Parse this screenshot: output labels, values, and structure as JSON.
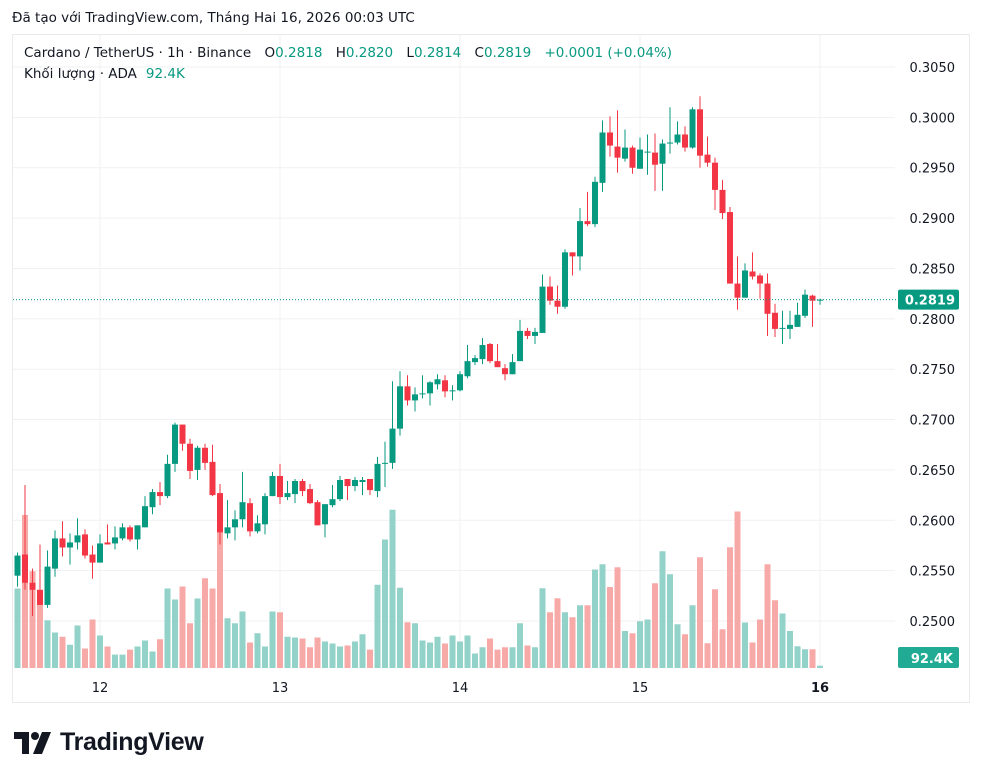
{
  "created_line": "Đã tạo với TradingView.com, Tháng Hai 16, 2026 00:03 UTC",
  "legend": {
    "symbol": "Cardano / TetherUS · 1h · Binance",
    "o_label": "O",
    "o_value": "0.2818",
    "h_label": "H",
    "h_value": "0.2820",
    "l_label": "L",
    "l_value": "0.2814",
    "c_label": "C",
    "c_value": "0.2819",
    "change": "+0.0001 (+0.04%)",
    "volume_label": "Khối lượng · ADA",
    "volume_value": "92.4K"
  },
  "brand": {
    "logo_text": "TradingView"
  },
  "colors": {
    "up": "#089981",
    "down": "#f23645",
    "vol_up": "#92d2c9",
    "vol_down": "#f7a9a7",
    "grid": "#f0f1f3"
  },
  "chart_data": {
    "type": "candlestick",
    "interval": "1h",
    "price_axis": {
      "range": [
        0.245,
        0.3065
      ],
      "ticks": [
        "0.3050",
        "0.3000",
        "0.2950",
        "0.2900",
        "0.2850",
        "0.2800",
        "0.2750",
        "0.2700",
        "0.2650",
        "0.2600",
        "0.2550",
        "0.2500"
      ],
      "position": "right"
    },
    "time_axis": {
      "ticks": [
        {
          "label": "12",
          "bar": 12
        },
        {
          "label": "13",
          "bar": 36
        },
        {
          "label": "14",
          "bar": 60
        },
        {
          "label": "15",
          "bar": 84
        },
        {
          "label": "16",
          "bar": 108,
          "bold": true
        }
      ]
    },
    "last_price_label": "0.2819",
    "last_volume_label": "92.4K",
    "grid": true,
    "candle_fields": [
      "open",
      "high",
      "low",
      "close",
      "volume_k"
    ],
    "candles": [
      [
        0.2545,
        0.2568,
        0.2534,
        0.2565,
        3180
      ],
      [
        0.2566,
        0.2635,
        0.2531,
        0.2538,
        6120
      ],
      [
        0.2538,
        0.2552,
        0.2505,
        0.2531,
        3870
      ],
      [
        0.2531,
        0.2576,
        0.2516,
        0.2516,
        2750
      ],
      [
        0.2516,
        0.257,
        0.2513,
        0.2554,
        1910
      ],
      [
        0.2552,
        0.259,
        0.2544,
        0.2582,
        1420
      ],
      [
        0.2582,
        0.2599,
        0.2564,
        0.2573,
        1250
      ],
      [
        0.2573,
        0.2587,
        0.2556,
        0.2578,
        930
      ],
      [
        0.2578,
        0.2602,
        0.2571,
        0.2585,
        1700
      ],
      [
        0.2586,
        0.2591,
        0.2562,
        0.2565,
        780
      ],
      [
        0.2566,
        0.2575,
        0.2542,
        0.2558,
        1940
      ],
      [
        0.2558,
        0.2586,
        0.2558,
        0.2577,
        1300
      ],
      [
        0.2578,
        0.2596,
        0.2576,
        0.2576,
        860
      ],
      [
        0.2577,
        0.2594,
        0.2571,
        0.2583,
        535
      ],
      [
        0.2582,
        0.2597,
        0.258,
        0.2593,
        535
      ],
      [
        0.2593,
        0.2595,
        0.2579,
        0.2581,
        735
      ],
      [
        0.2581,
        0.2595,
        0.2571,
        0.2595,
        860
      ],
      [
        0.2593,
        0.2624,
        0.2593,
        0.2614,
        1100
      ],
      [
        0.2613,
        0.2631,
        0.2606,
        0.2628,
        660
      ],
      [
        0.2628,
        0.2638,
        0.2615,
        0.2624,
        1150
      ],
      [
        0.2624,
        0.2665,
        0.2622,
        0.2656,
        3180
      ],
      [
        0.2656,
        0.2697,
        0.2648,
        0.2695,
        2740
      ],
      [
        0.2695,
        0.2695,
        0.2669,
        0.2676,
        3260
      ],
      [
        0.2676,
        0.2681,
        0.2641,
        0.2649,
        1790
      ],
      [
        0.265,
        0.2674,
        0.264,
        0.2672,
        2780
      ],
      [
        0.2672,
        0.2676,
        0.265,
        0.2657,
        3590
      ],
      [
        0.2658,
        0.2675,
        0.2624,
        0.2625,
        3180
      ],
      [
        0.2627,
        0.2636,
        0.2576,
        0.2588,
        6240
      ],
      [
        0.2587,
        0.262,
        0.2582,
        0.2593,
        1990
      ],
      [
        0.2593,
        0.261,
        0.258,
        0.2601,
        1790
      ],
      [
        0.2601,
        0.2648,
        0.2593,
        0.2618,
        2260
      ],
      [
        0.2617,
        0.2622,
        0.2584,
        0.2589,
        1020
      ],
      [
        0.2589,
        0.2605,
        0.2587,
        0.2597,
        1390
      ],
      [
        0.2596,
        0.2627,
        0.2586,
        0.2624,
        860
      ],
      [
        0.2624,
        0.2648,
        0.2624,
        0.2644,
        2260
      ],
      [
        0.2644,
        0.2656,
        0.2616,
        0.2623,
        2230
      ],
      [
        0.2623,
        0.2639,
        0.262,
        0.2627,
        1250
      ],
      [
        0.2626,
        0.2641,
        0.2617,
        0.2639,
        1220
      ],
      [
        0.2639,
        0.2641,
        0.2624,
        0.2629,
        1180
      ],
      [
        0.2631,
        0.2636,
        0.2616,
        0.2617,
        830
      ],
      [
        0.2618,
        0.262,
        0.2595,
        0.2595,
        1220
      ],
      [
        0.2596,
        0.2616,
        0.2583,
        0.2616,
        1060
      ],
      [
        0.2615,
        0.2635,
        0.2613,
        0.2621,
        980
      ],
      [
        0.2621,
        0.2644,
        0.2619,
        0.264,
        860
      ],
      [
        0.2641,
        0.2641,
        0.262,
        0.2634,
        900
      ],
      [
        0.2634,
        0.2643,
        0.2629,
        0.264,
        1060
      ],
      [
        0.2638,
        0.2643,
        0.2625,
        0.264,
        1350
      ],
      [
        0.2641,
        0.2641,
        0.2625,
        0.263,
        735
      ],
      [
        0.2629,
        0.2663,
        0.2623,
        0.2656,
        3330
      ],
      [
        0.2656,
        0.2678,
        0.2633,
        0.2657,
        5140
      ],
      [
        0.2657,
        0.2738,
        0.2651,
        0.2691,
        6330
      ],
      [
        0.2691,
        0.2748,
        0.2684,
        0.2733,
        3210
      ],
      [
        0.2733,
        0.2744,
        0.2714,
        0.2719,
        1830
      ],
      [
        0.2719,
        0.2732,
        0.2708,
        0.2725,
        1790
      ],
      [
        0.2725,
        0.2744,
        0.2721,
        0.2726,
        1100
      ],
      [
        0.2726,
        0.2738,
        0.2714,
        0.2737,
        1020
      ],
      [
        0.2735,
        0.2745,
        0.273,
        0.274,
        1250
      ],
      [
        0.2739,
        0.2744,
        0.2722,
        0.2728,
        980
      ],
      [
        0.2728,
        0.2734,
        0.2719,
        0.2729,
        1300
      ],
      [
        0.2729,
        0.2748,
        0.2728,
        0.2745,
        1060
      ],
      [
        0.2743,
        0.2774,
        0.2741,
        0.2758,
        1300
      ],
      [
        0.2757,
        0.2764,
        0.2754,
        0.2761,
        580
      ],
      [
        0.276,
        0.2781,
        0.2755,
        0.2774,
        830
      ],
      [
        0.2775,
        0.2776,
        0.2756,
        0.2758,
        1180
      ],
      [
        0.2758,
        0.2775,
        0.2752,
        0.2752,
        735
      ],
      [
        0.2751,
        0.2755,
        0.2739,
        0.2745,
        830
      ],
      [
        0.2745,
        0.2765,
        0.2745,
        0.2757,
        830
      ],
      [
        0.2758,
        0.2799,
        0.2758,
        0.2788,
        1790
      ],
      [
        0.2788,
        0.2791,
        0.278,
        0.2783,
        900
      ],
      [
        0.2783,
        0.2791,
        0.2775,
        0.2787,
        830
      ],
      [
        0.2786,
        0.2844,
        0.2786,
        0.2832,
        3190
      ],
      [
        0.2832,
        0.2842,
        0.2814,
        0.2818,
        2230
      ],
      [
        0.2818,
        0.2833,
        0.2805,
        0.2812,
        2790
      ],
      [
        0.2812,
        0.2869,
        0.281,
        0.2866,
        2230
      ],
      [
        0.2866,
        0.2866,
        0.2843,
        0.2862,
        2030
      ],
      [
        0.2862,
        0.291,
        0.2848,
        0.2897,
        2510
      ],
      [
        0.2897,
        0.2926,
        0.2892,
        0.2894,
        2510
      ],
      [
        0.2894,
        0.2941,
        0.2891,
        0.2936,
        3940
      ],
      [
        0.2935,
        0.2997,
        0.2926,
        0.2985,
        4150
      ],
      [
        0.2985,
        0.3001,
        0.2961,
        0.2972,
        3240
      ],
      [
        0.2971,
        0.3007,
        0.2945,
        0.296,
        4030
      ],
      [
        0.2959,
        0.2988,
        0.2956,
        0.297,
        1480
      ],
      [
        0.297,
        0.2972,
        0.2944,
        0.295,
        1390
      ],
      [
        0.2949,
        0.298,
        0.2949,
        0.2968,
        1870
      ],
      [
        0.2965,
        0.2983,
        0.2943,
        0.2966,
        1940
      ],
      [
        0.2965,
        0.2984,
        0.2927,
        0.2953,
        3390
      ],
      [
        0.2954,
        0.2978,
        0.2927,
        0.2974,
        4670
      ],
      [
        0.2974,
        0.301,
        0.2964,
        0.2975,
        3750
      ],
      [
        0.2975,
        0.2996,
        0.2973,
        0.2983,
        1750
      ],
      [
        0.2983,
        0.2991,
        0.2966,
        0.297,
        1350
      ],
      [
        0.297,
        0.301,
        0.2969,
        0.3008,
        2510
      ],
      [
        0.3008,
        0.3021,
        0.295,
        0.2962,
        4430
      ],
      [
        0.2963,
        0.2981,
        0.2951,
        0.2955,
        990
      ],
      [
        0.2955,
        0.296,
        0.2908,
        0.2928,
        3150
      ],
      [
        0.2928,
        0.2938,
        0.2899,
        0.2905,
        1550
      ],
      [
        0.2906,
        0.2911,
        0.2835,
        0.2835,
        4830
      ],
      [
        0.2835,
        0.2862,
        0.2809,
        0.2821,
        6260
      ],
      [
        0.2821,
        0.2855,
        0.2821,
        0.2848,
        1820
      ],
      [
        0.2847,
        0.2866,
        0.2839,
        0.2842,
        1020
      ],
      [
        0.2843,
        0.2845,
        0.282,
        0.2835,
        1940
      ],
      [
        0.2835,
        0.2845,
        0.2783,
        0.2805,
        4150
      ],
      [
        0.2806,
        0.2815,
        0.2782,
        0.279,
        2710
      ],
      [
        0.279,
        0.2808,
        0.2775,
        0.2791,
        2180
      ],
      [
        0.279,
        0.2808,
        0.278,
        0.2794,
        1480
      ],
      [
        0.2792,
        0.2816,
        0.2792,
        0.2804,
        870
      ],
      [
        0.2803,
        0.2829,
        0.2801,
        0.2824,
        750
      ],
      [
        0.2823,
        0.2824,
        0.2792,
        0.2818,
        750
      ],
      [
        0.2818,
        0.282,
        0.2814,
        0.2819,
        92.4
      ]
    ]
  }
}
